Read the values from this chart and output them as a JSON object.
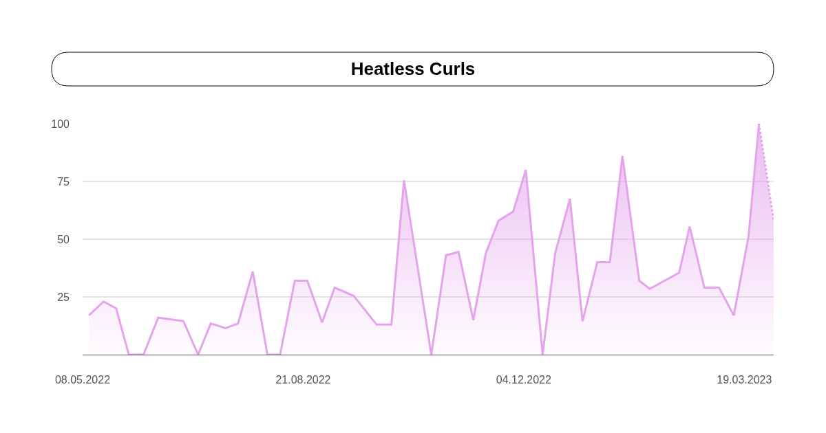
{
  "chart_data": {
    "type": "area",
    "title": "Heatless Curls",
    "x": [
      "2022-05-11",
      "2022-05-18",
      "2022-05-24",
      "2022-05-30",
      "2022-06-06",
      "2022-06-13",
      "2022-06-25",
      "2022-07-02",
      "2022-07-08",
      "2022-07-15",
      "2022-07-21",
      "2022-07-28",
      "2022-08-04",
      "2022-08-10",
      "2022-08-17",
      "2022-08-23",
      "2022-08-30",
      "2022-09-05",
      "2022-09-14",
      "2022-09-25",
      "2022-10-02",
      "2022-10-08",
      "2022-10-21",
      "2022-10-28",
      "2022-11-03",
      "2022-11-10",
      "2022-11-16",
      "2022-11-22",
      "2022-11-29",
      "2022-12-05",
      "2022-12-13",
      "2022-12-19",
      "2022-12-26",
      "2023-01-01",
      "2023-01-08",
      "2023-01-14",
      "2023-01-20",
      "2023-01-28",
      "2023-02-02",
      "2023-02-16",
      "2023-02-21",
      "2023-02-28",
      "2023-03-07",
      "2023-03-14",
      "2023-03-21",
      "2023-03-26"
    ],
    "series": [
      {
        "color": "#e4a4ec",
        "line_style": "solid",
        "values": [
          17,
          23,
          20,
          0,
          0,
          16,
          14.5,
          0,
          13.5,
          11.5,
          13.5,
          36,
          0,
          0,
          32,
          32,
          14,
          29,
          25.5,
          13,
          13,
          75.5,
          0,
          43,
          44.5,
          15,
          44,
          58,
          62,
          80,
          0,
          44,
          67.5,
          14.5,
          40,
          40,
          86,
          32,
          28.5,
          35.5,
          55.5,
          29,
          29,
          17,
          51,
          100
        ]
      },
      {
        "color": "#e4a4ec",
        "line_style": "dotted",
        "x": [
          "2023-03-26",
          "2023-04-02"
        ],
        "values": [
          100,
          58
        ]
      }
    ],
    "xlim": [
      "2022-05-08",
      "2023-04-02"
    ],
    "xticks": [
      {
        "value": "2022-05-08",
        "label": "08.05.2022"
      },
      {
        "value": "2022-08-21",
        "label": "21.08.2022"
      },
      {
        "value": "2022-12-04",
        "label": "04.12.2022"
      },
      {
        "value": "2023-03-19",
        "label": "19.03.2023"
      }
    ],
    "ylim": [
      0,
      100
    ],
    "yticks": [
      25,
      50,
      75,
      100
    ],
    "grid": "y",
    "marker": "none"
  }
}
